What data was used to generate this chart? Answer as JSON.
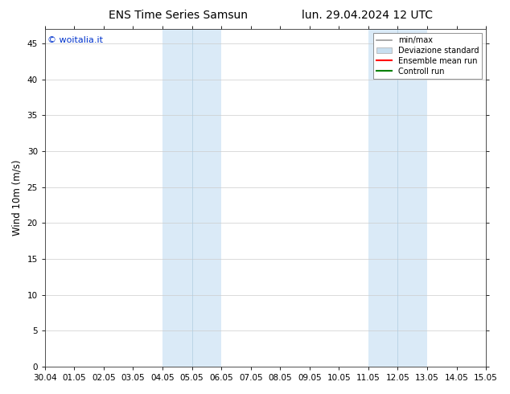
{
  "title_left": "ENS Time Series Samsun",
  "title_right": "lun. 29.04.2024 12 UTC",
  "ylabel": "Wind 10m (m/s)",
  "watermark": "© woitalia.it",
  "ylim": [
    0,
    47
  ],
  "yticks": [
    0,
    5,
    10,
    15,
    20,
    25,
    30,
    35,
    40,
    45
  ],
  "xtick_labels": [
    "30.04",
    "01.05",
    "02.05",
    "03.05",
    "04.05",
    "05.05",
    "06.05",
    "07.05",
    "08.05",
    "09.05",
    "10.05",
    "11.05",
    "12.05",
    "13.05",
    "14.05",
    "15.05"
  ],
  "xlim": [
    0,
    15
  ],
  "shaded_regions": [
    [
      4.0,
      5.0
    ],
    [
      5.0,
      6.0
    ],
    [
      11.0,
      12.0
    ],
    [
      12.0,
      13.0
    ]
  ],
  "shaded_color": "#daeaf7",
  "background_color": "#ffffff",
  "legend_items": [
    {
      "label": "min/max",
      "color": "#999999",
      "lw": 1.2
    },
    {
      "label": "Deviazione standard",
      "color": "#c8dff0",
      "patch": true
    },
    {
      "label": "Ensemble mean run",
      "color": "#ff0000",
      "lw": 1.5
    },
    {
      "label": "Controll run",
      "color": "#008000",
      "lw": 1.5
    }
  ],
  "title_fontsize": 10,
  "tick_fontsize": 7.5,
  "ylabel_fontsize": 8.5,
  "watermark_color": "#0033cc",
  "watermark_fontsize": 8
}
